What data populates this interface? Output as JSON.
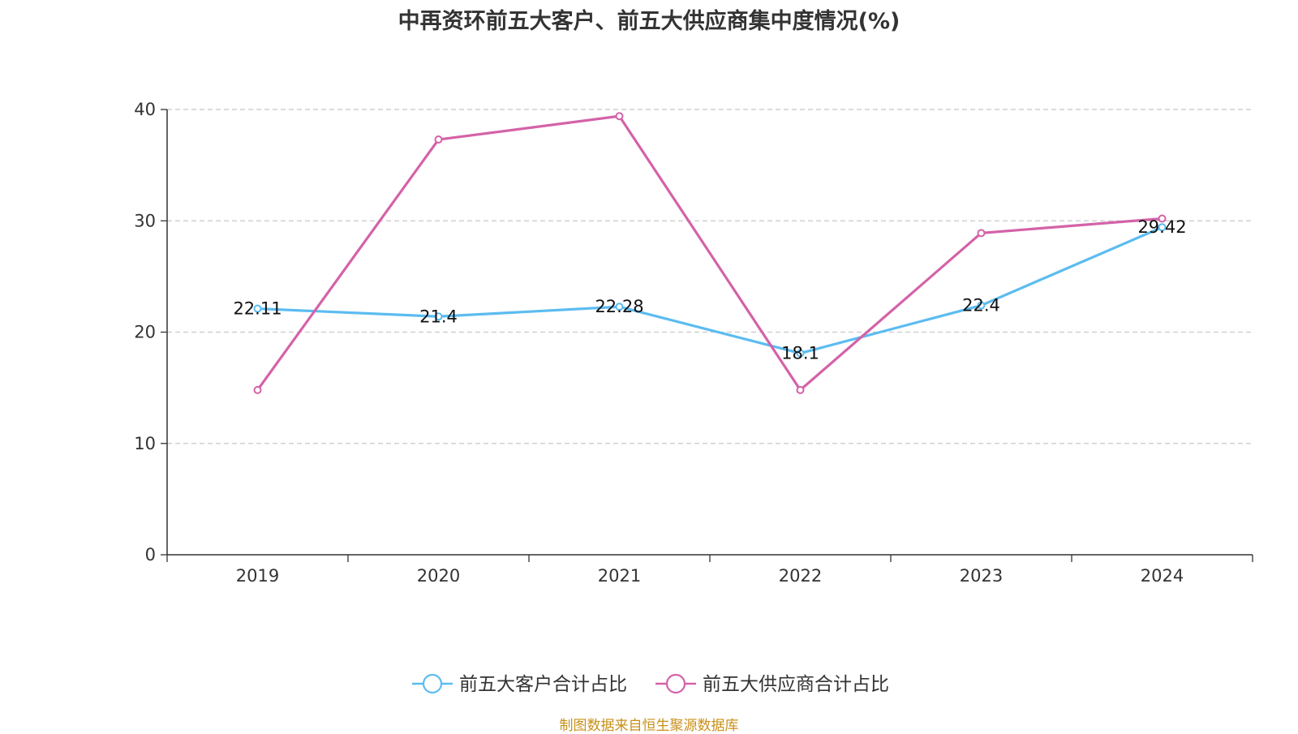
{
  "chart_data": {
    "type": "line",
    "title": "中再资环前五大客户、前五大供应商集中度情况(%)",
    "categories": [
      "2019",
      "2020",
      "2021",
      "2022",
      "2023",
      "2024"
    ],
    "ylim": [
      0,
      40
    ],
    "yticks": [
      0,
      10,
      20,
      30,
      40
    ],
    "grid": true,
    "legend_position": "bottom-center",
    "series": [
      {
        "name": "前五大客户合计占比",
        "color": "#5bbcf0",
        "values": [
          22.11,
          21.4,
          22.28,
          18.1,
          22.4,
          29.42
        ],
        "labels": [
          "22.11",
          "21.4",
          "22.28",
          "18.1",
          "22.4",
          "29.42"
        ]
      },
      {
        "name": "前五大供应商合计占比",
        "color": "#d462a8",
        "values": [
          14.8,
          37.3,
          39.4,
          14.8,
          28.9,
          30.2
        ]
      }
    ]
  },
  "footer": {
    "source": "制图数据来自恒生聚源数据库"
  }
}
